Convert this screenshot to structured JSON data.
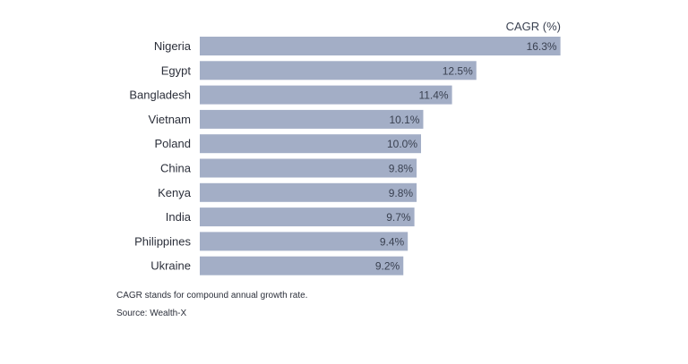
{
  "chart_data": {
    "type": "bar",
    "orientation": "horizontal",
    "series_header": "CAGR (%)",
    "categories": [
      "Nigeria",
      "Egypt",
      "Bangladesh",
      "Vietnam",
      "Poland",
      "China",
      "Kenya",
      "India",
      "Philippines",
      "Ukraine"
    ],
    "values": [
      16.3,
      12.5,
      11.4,
      10.1,
      10.0,
      9.8,
      9.8,
      9.7,
      9.4,
      9.2
    ],
    "value_labels": [
      "16.3%",
      "12.5%",
      "11.4%",
      "10.1%",
      "10.0%",
      "9.8%",
      "9.8%",
      "9.7%",
      "9.4%",
      "9.2%"
    ],
    "grid": false,
    "legend": "none",
    "colors": {
      "bar": "#a3aec6",
      "text": "#2b2f3a",
      "value_text": "#3a4151"
    }
  },
  "notes": {
    "line1": "CAGR stands for compound annual growth rate.",
    "line2": "Source: Wealth-X"
  }
}
